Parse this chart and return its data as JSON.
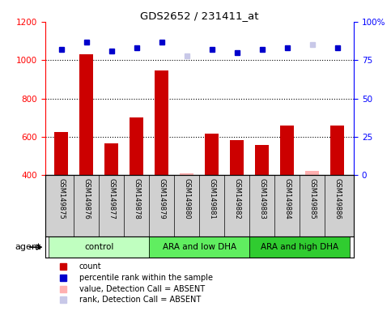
{
  "title": "GDS2652 / 231411_at",
  "samples": [
    "GSM149875",
    "GSM149876",
    "GSM149877",
    "GSM149878",
    "GSM149879",
    "GSM149880",
    "GSM149881",
    "GSM149882",
    "GSM149883",
    "GSM149884",
    "GSM149885",
    "GSM149886"
  ],
  "counts": [
    625,
    1030,
    565,
    700,
    945,
    410,
    615,
    585,
    560,
    660,
    425,
    660
  ],
  "percentile_ranks": [
    82,
    87,
    81,
    83,
    87,
    78,
    82,
    80,
    82,
    83,
    85,
    83
  ],
  "absent_mask": [
    false,
    false,
    false,
    false,
    false,
    true,
    false,
    false,
    false,
    false,
    true,
    false
  ],
  "bar_color": "#cc0000",
  "bar_color_absent": "#ffb0b0",
  "rank_color": "#0000cc",
  "rank_color_absent": "#c8c8e8",
  "ylim_left": [
    400,
    1200
  ],
  "ylim_right": [
    0,
    100
  ],
  "yticks_left": [
    400,
    600,
    800,
    1000,
    1200
  ],
  "yticks_right": [
    0,
    25,
    50,
    75,
    100
  ],
  "ytick_labels_right": [
    "0",
    "25",
    "50",
    "75",
    "100%"
  ],
  "groups": [
    {
      "label": "control",
      "start": 0,
      "end": 3,
      "color": "#c0ffc0"
    },
    {
      "label": "ARA and low DHA",
      "start": 4,
      "end": 7,
      "color": "#60ee60"
    },
    {
      "label": "ARA and high DHA",
      "start": 8,
      "end": 11,
      "color": "#30cc30"
    }
  ],
  "agent_label": "agent",
  "sample_bg_color": "#d0d0d0",
  "plot_bg": "#ffffff",
  "legend_items": [
    {
      "label": "count",
      "color": "#cc0000"
    },
    {
      "label": "percentile rank within the sample",
      "color": "#0000cc"
    },
    {
      "label": "value, Detection Call = ABSENT",
      "color": "#ffb0b0"
    },
    {
      "label": "rank, Detection Call = ABSENT",
      "color": "#c8c8e8"
    }
  ]
}
